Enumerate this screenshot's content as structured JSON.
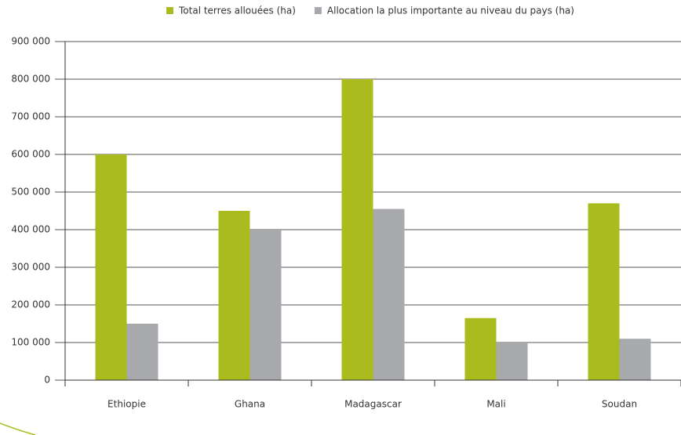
{
  "chart_data": {
    "type": "bar",
    "categories": [
      "Ethiopie",
      "Ghana",
      "Madagascar",
      "Mali",
      "Soudan"
    ],
    "series": [
      {
        "name": "Total terres allouées (ha)",
        "color": "#aabb1e",
        "values": [
          600000,
          450000,
          800000,
          165000,
          470000
        ]
      },
      {
        "name": "Allocation la plus importante au niveau du pays (ha)",
        "color": "#a7a9ac",
        "values": [
          150000,
          400000,
          455000,
          100000,
          110000
        ]
      }
    ],
    "ylim": [
      0,
      900000
    ],
    "yticks": [
      {
        "value": 0,
        "label": "0"
      },
      {
        "value": 100000,
        "label": "100 000"
      },
      {
        "value": 200000,
        "label": "200 000"
      },
      {
        "value": 300000,
        "label": "300 000"
      },
      {
        "value": 400000,
        "label": "400 000"
      },
      {
        "value": 500000,
        "label": "500 000"
      },
      {
        "value": 600000,
        "label": "600 000"
      },
      {
        "value": 700000,
        "label": "700 000"
      },
      {
        "value": 800000,
        "label": "800 000"
      },
      {
        "value": 900000,
        "label": "900 000"
      }
    ],
    "grid": true,
    "legend": "top"
  }
}
